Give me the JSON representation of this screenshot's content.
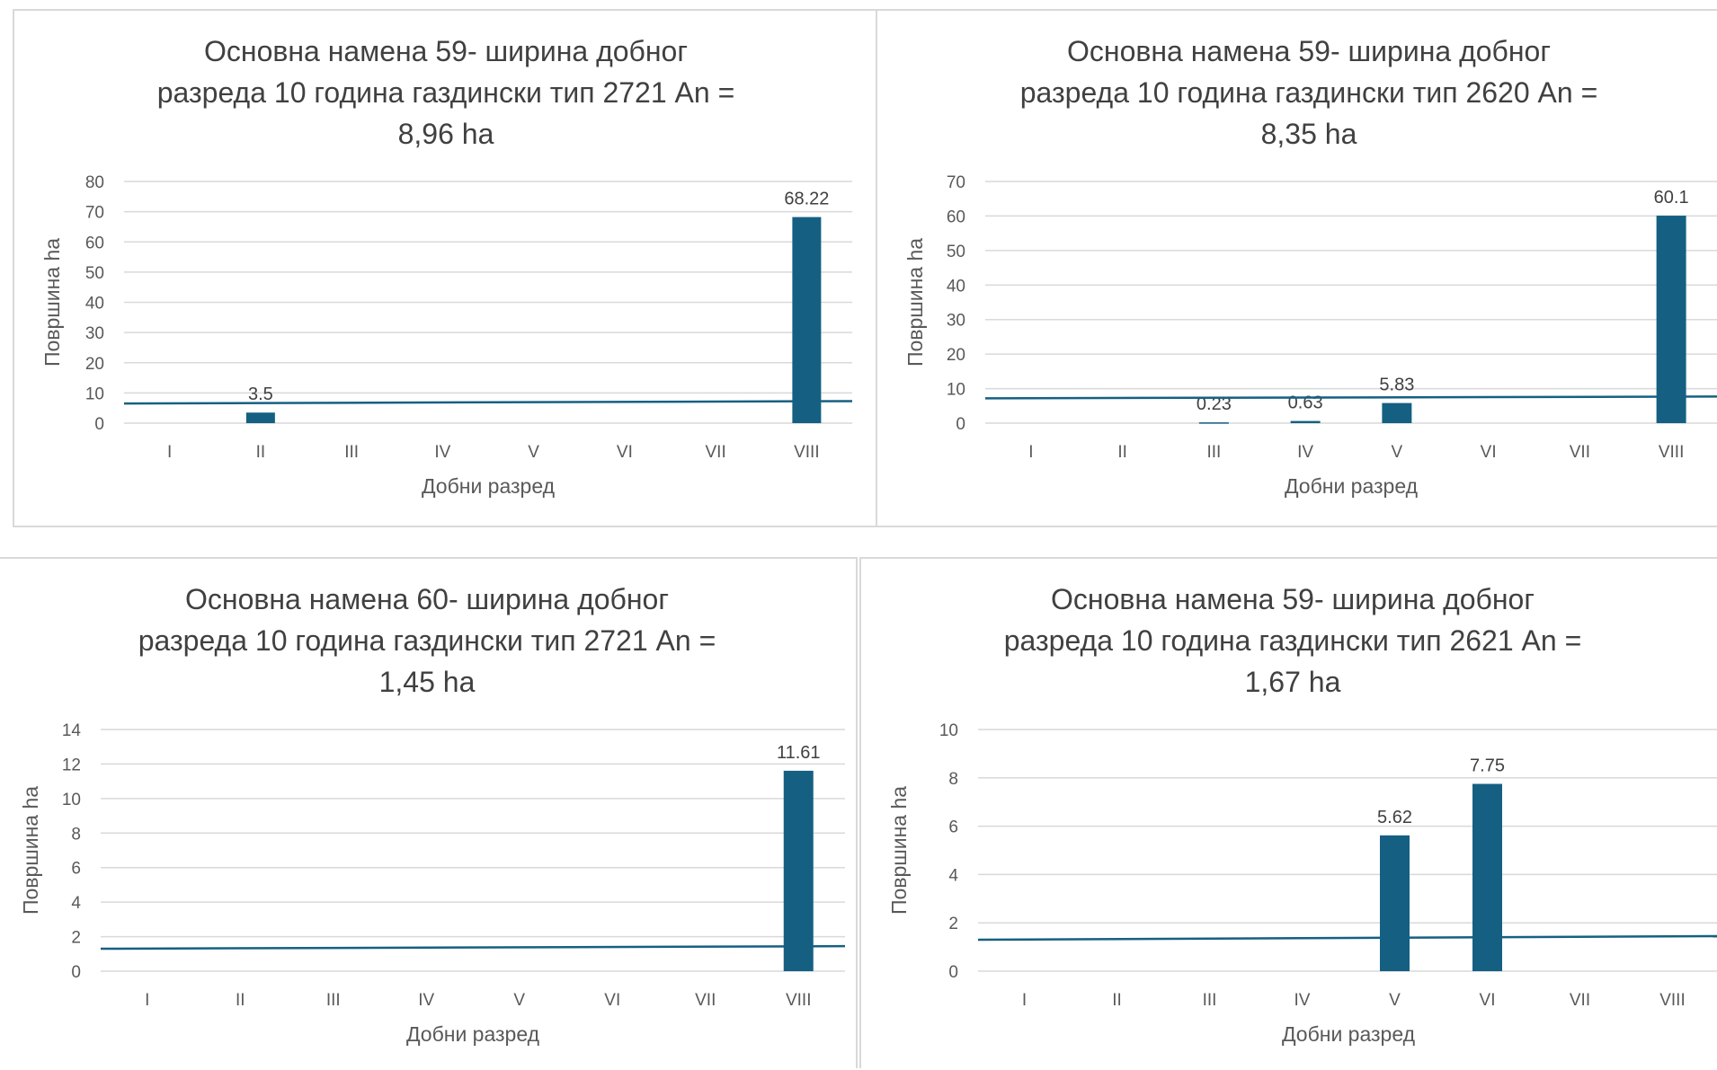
{
  "colors": {
    "bar": "#156082",
    "trendline": "#156082",
    "grid": "#d9d9d9",
    "text": "#404040",
    "axis_text": "#595959",
    "panel_border": "#d9d9d9"
  },
  "chart_data": [
    {
      "type": "bar",
      "title_lines": [
        "Основна намена 59- ширина добног",
        "разреда 10 година газдински тип 2721  An =",
        "8,96 ha"
      ],
      "xlabel": "Добни разред",
      "ylabel": "Површина ha",
      "categories": [
        "I",
        "II",
        "III",
        "IV",
        "V",
        "VI",
        "VII",
        "VIII"
      ],
      "values": [
        null,
        3.5,
        null,
        null,
        null,
        null,
        null,
        68.22
      ],
      "data_labels": [
        "",
        "3.5",
        "",
        "",
        "",
        "",
        "",
        "68.22"
      ],
      "yticks": [
        "0",
        "10",
        "20",
        "30",
        "40",
        "50",
        "60",
        "70",
        "80"
      ],
      "ylim": [
        0,
        80
      ],
      "trendline": [
        6.5,
        7.3
      ],
      "grid": true,
      "legend": "none"
    },
    {
      "type": "bar",
      "title_lines": [
        "Основна намена 59- ширина добног",
        "разреда 10 година газдински тип 2620  An =",
        "8,35 ha"
      ],
      "xlabel": "Добни разред",
      "ylabel": "Површина ha",
      "categories": [
        "I",
        "II",
        "III",
        "IV",
        "V",
        "VI",
        "VII",
        "VIII"
      ],
      "values": [
        null,
        null,
        0.23,
        0.63,
        5.83,
        null,
        null,
        60.1
      ],
      "data_labels": [
        "",
        "",
        "0.23",
        "0.63",
        "5.83",
        "",
        "",
        "60.1"
      ],
      "yticks": [
        "0",
        "10",
        "20",
        "30",
        "40",
        "50",
        "60",
        "70"
      ],
      "ylim": [
        0,
        70
      ],
      "trendline": [
        7.2,
        7.7
      ],
      "grid": true,
      "legend": "none"
    },
    {
      "type": "bar",
      "title_lines": [
        "Основна намена 60- ширина добног",
        "разреда 10 година газдински тип 2721  An =",
        "1,45 ha"
      ],
      "xlabel": "Добни разред",
      "ylabel": "Површина ha",
      "categories": [
        "I",
        "II",
        "III",
        "IV",
        "V",
        "VI",
        "VII",
        "VIII"
      ],
      "values": [
        null,
        null,
        null,
        null,
        null,
        null,
        null,
        11.61
      ],
      "data_labels": [
        "",
        "",
        "",
        "",
        "",
        "",
        "",
        "11.61"
      ],
      "yticks": [
        "0",
        "2",
        "4",
        "6",
        "8",
        "10",
        "12",
        "14"
      ],
      "ylim": [
        0,
        14
      ],
      "trendline": [
        1.3,
        1.45
      ],
      "grid": true,
      "legend": "none"
    },
    {
      "type": "bar",
      "title_lines": [
        "Основна намена 59- ширина добног",
        "разреда 10 година газдински тип 2621  An =",
        "1,67 ha"
      ],
      "xlabel": "Добни разред",
      "ylabel": "Површина ha",
      "categories": [
        "I",
        "II",
        "III",
        "IV",
        "V",
        "VI",
        "VII",
        "VIII"
      ],
      "values": [
        null,
        null,
        null,
        null,
        5.62,
        7.75,
        null,
        null
      ],
      "data_labels": [
        "",
        "",
        "",
        "",
        "5.62",
        "7.75",
        "",
        ""
      ],
      "yticks": [
        "0",
        "2",
        "4",
        "6",
        "8",
        "10"
      ],
      "ylim": [
        0,
        10
      ],
      "trendline": [
        1.3,
        1.45
      ],
      "grid": true,
      "legend": "none"
    }
  ]
}
